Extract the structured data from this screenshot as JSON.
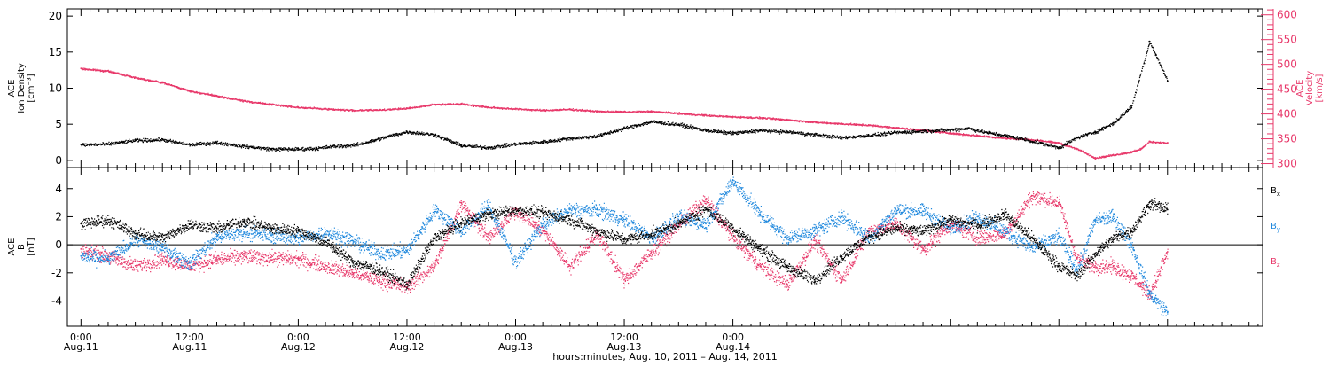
{
  "chart_data": [
    {
      "type": "scatter",
      "panel": "top",
      "ylabel": [
        "ACE",
        "Ion Density",
        "[cm⁻³]"
      ],
      "ylim": [
        -1,
        21
      ],
      "yticks": [
        0,
        5,
        10,
        15,
        20
      ],
      "y2label": [
        "ACE",
        "Velocity",
        "[km/s]"
      ],
      "y2lim": [
        292,
        612
      ],
      "y2ticks": [
        300,
        350,
        400,
        450,
        500,
        550,
        600
      ],
      "series": [
        {
          "axis": "left",
          "color": "#000000",
          "t": [
            0,
            3,
            6,
            9,
            12,
            15,
            18,
            21,
            24,
            26,
            28,
            30,
            32,
            34,
            36,
            39,
            42,
            45,
            48,
            51,
            54,
            57,
            60,
            63,
            66,
            69,
            72,
            75,
            78,
            81,
            84,
            87,
            90,
            93,
            96,
            98,
            100,
            102,
            104,
            106,
            108,
            110,
            112,
            114,
            116,
            118,
            120
          ],
          "values": [
            2.2,
            2.3,
            2.8,
            2.9,
            2.2,
            2.5,
            2.0,
            1.6,
            1.6,
            1.7,
            2.0,
            2.1,
            2.7,
            3.4,
            4.0,
            3.6,
            2.1,
            1.8,
            2.3,
            2.6,
            3.1,
            3.4,
            4.5,
            5.4,
            5.0,
            4.2,
            3.8,
            4.2,
            4.0,
            3.6,
            3.2,
            3.5,
            3.9,
            4.1,
            4.3,
            4.5,
            3.9,
            3.5,
            3.0,
            2.4,
            1.8,
            3.2,
            4.0,
            5.2,
            7.5,
            16.5,
            11.0
          ]
        },
        {
          "axis": "right",
          "color": "#e8386a",
          "t": [
            0,
            3,
            6,
            9,
            12,
            15,
            18,
            21,
            24,
            27,
            30,
            33,
            36,
            39,
            42,
            45,
            48,
            51,
            54,
            57,
            60,
            63,
            66,
            69,
            72,
            75,
            78,
            81,
            84,
            87,
            90,
            93,
            96,
            99,
            102,
            104,
            106,
            108,
            110,
            112,
            114,
            116,
            117,
            118,
            120
          ],
          "values": [
            492,
            487,
            474,
            464,
            447,
            437,
            427,
            420,
            414,
            411,
            408,
            409,
            412,
            420,
            421,
            414,
            411,
            408,
            410,
            406,
            405,
            406,
            402,
            398,
            395,
            393,
            389,
            384,
            381,
            378,
            373,
            368,
            362,
            357,
            352,
            350,
            347,
            342,
            330,
            312,
            318,
            324,
            330,
            345,
            342
          ]
        }
      ]
    },
    {
      "type": "scatter",
      "panel": "bottom",
      "ylabel": [
        "ACE",
        "B",
        "[nT]"
      ],
      "ylim": [
        -5.8,
        5.5
      ],
      "yticks": [
        -4,
        -2,
        0,
        2,
        4
      ],
      "series": [
        {
          "name": "B",
          "subscript": "x",
          "color": "#000000",
          "t": [
            0,
            3,
            6,
            9,
            12,
            15,
            18,
            21,
            24,
            27,
            30,
            33,
            36,
            39,
            42,
            45,
            48,
            51,
            54,
            57,
            60,
            63,
            66,
            69,
            72,
            75,
            78,
            81,
            84,
            87,
            90,
            93,
            96,
            99,
            102,
            105,
            108,
            110,
            112,
            114,
            116,
            118,
            120
          ],
          "values": [
            1.5,
            1.8,
            0.8,
            0.5,
            1.5,
            1.2,
            1.7,
            1.2,
            1.0,
            0.2,
            -1.2,
            -1.8,
            -2.8,
            0.5,
            1.6,
            2.2,
            2.5,
            2.3,
            1.8,
            1.0,
            0.4,
            0.8,
            1.5,
            2.6,
            1.2,
            -0.3,
            -1.6,
            -2.5,
            -0.8,
            0.6,
            1.2,
            1.0,
            1.8,
            1.4,
            2.2,
            0.5,
            -1.5,
            -2.2,
            -0.6,
            0.5,
            1.0,
            3.0,
            2.5
          ]
        },
        {
          "name": "B",
          "subscript": "y",
          "color": "#1f88dd",
          "t": [
            0,
            3,
            6,
            9,
            12,
            15,
            18,
            21,
            24,
            27,
            30,
            33,
            36,
            39,
            42,
            45,
            48,
            51,
            54,
            57,
            60,
            63,
            66,
            69,
            72,
            75,
            78,
            81,
            84,
            87,
            90,
            93,
            96,
            99,
            102,
            105,
            108,
            110,
            112,
            114,
            116,
            118,
            120
          ],
          "values": [
            -0.8,
            -1.0,
            0.4,
            -0.2,
            -1.3,
            0.6,
            0.9,
            0.7,
            0.5,
            0.9,
            0.3,
            -0.6,
            -0.4,
            2.5,
            1.0,
            2.8,
            -1.2,
            1.5,
            2.5,
            2.5,
            1.8,
            0.5,
            2.0,
            1.5,
            4.6,
            2.2,
            0.5,
            1.0,
            2.0,
            0.5,
            2.5,
            2.4,
            1.2,
            2.0,
            1.0,
            -0.2,
            0.6,
            -1.8,
            1.8,
            2.0,
            0.0,
            -3.5,
            -4.8
          ]
        },
        {
          "name": "B",
          "subscript": "z",
          "color": "#e8386a",
          "t": [
            0,
            3,
            6,
            9,
            12,
            15,
            18,
            21,
            24,
            27,
            30,
            33,
            36,
            39,
            42,
            45,
            48,
            51,
            54,
            57,
            60,
            63,
            66,
            69,
            72,
            75,
            78,
            81,
            84,
            87,
            90,
            93,
            96,
            99,
            102,
            105,
            108,
            110,
            112,
            114,
            116,
            118,
            120
          ],
          "values": [
            -0.3,
            -0.8,
            -1.5,
            -1.0,
            -1.5,
            -1.0,
            -0.8,
            -0.9,
            -1.0,
            -1.5,
            -2.0,
            -2.5,
            -3.0,
            -1.5,
            3.0,
            0.5,
            2.5,
            1.0,
            -1.5,
            0.8,
            -2.5,
            -0.5,
            1.5,
            3.2,
            0.5,
            -1.5,
            -2.8,
            0.3,
            -2.5,
            1.0,
            1.5,
            -0.3,
            1.5,
            0.5,
            0.8,
            3.5,
            3.0,
            -1.0,
            -1.5,
            -1.5,
            -2.2,
            -3.5,
            -0.5
          ]
        }
      ]
    }
  ],
  "x_axis": {
    "tmin": -1.5,
    "tmax": 130.5,
    "major_ticks": [
      {
        "t": 0,
        "time": "0:00",
        "date": "Aug.11"
      },
      {
        "t": 12,
        "time": "12:00",
        "date": "Aug.11"
      },
      {
        "t": 24,
        "time": "0:00",
        "date": "Aug.12"
      },
      {
        "t": 36,
        "time": "12:00",
        "date": "Aug.12"
      },
      {
        "t": 48,
        "time": "0:00",
        "date": "Aug.13"
      },
      {
        "t": 60,
        "time": "12:00",
        "date": "Aug.13"
      },
      {
        "t": 72,
        "time": "0:00",
        "date": "Aug.14"
      }
    ],
    "label": "hours:minutes, Aug. 10, 2011 – Aug. 14, 2011"
  },
  "colors": {
    "black": "#000000",
    "blue": "#1f88dd",
    "pink": "#e8386a"
  }
}
